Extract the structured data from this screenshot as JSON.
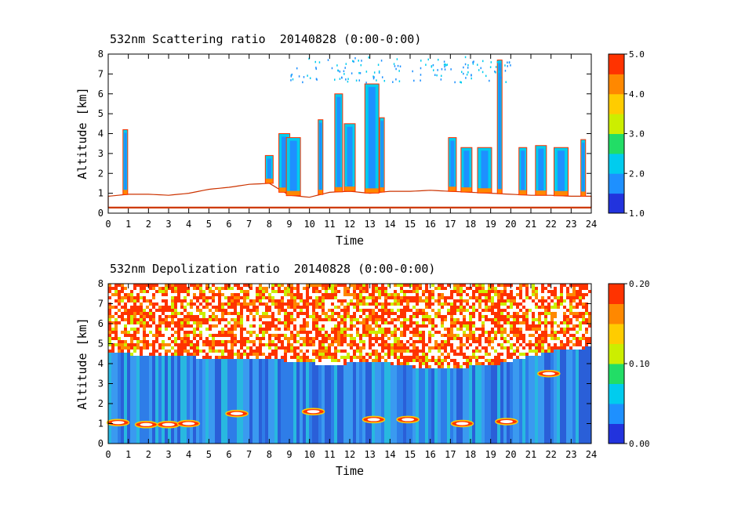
{
  "chart_data": [
    {
      "type": "heatmap",
      "title": "532nm Scattering ratio  20140828 (0:00-0:00)",
      "xlabel": "Time",
      "ylabel": "Altitude [km]",
      "xlim": [
        0,
        24
      ],
      "ylim": [
        0,
        8
      ],
      "x_ticks": [
        "0",
        "1",
        "2",
        "3",
        "4",
        "5",
        "6",
        "7",
        "8",
        "9",
        "10",
        "11",
        "12",
        "13",
        "14",
        "15",
        "16",
        "17",
        "18",
        "19",
        "20",
        "21",
        "22",
        "23",
        "24"
      ],
      "y_ticks": [
        "0",
        "1",
        "2",
        "3",
        "4",
        "5",
        "6",
        "7",
        "8"
      ],
      "colorbar": {
        "range": [
          1.0,
          5.0
        ],
        "tick_labels": [
          "1.0",
          "2.0",
          "3.0",
          "4.0",
          "5.0"
        ],
        "colors": [
          "#2233dd",
          "#1e90ff",
          "#00ccee",
          "#22dd66",
          "#ccee00",
          "#ffcc00",
          "#ff8800",
          "#ff3300"
        ]
      },
      "layers": {
        "boundary_layer_top_km": [
          [
            0,
            0.85
          ],
          [
            1,
            0.95
          ],
          [
            2,
            0.95
          ],
          [
            3,
            0.9
          ],
          [
            4,
            1.0
          ],
          [
            5,
            1.2
          ],
          [
            6,
            1.3
          ],
          [
            7,
            1.45
          ],
          [
            8,
            1.5
          ],
          [
            9,
            0.9
          ],
          [
            10,
            0.8
          ],
          [
            11,
            1.05
          ],
          [
            12,
            1.1
          ],
          [
            13,
            1.0
          ],
          [
            14,
            1.1
          ],
          [
            15,
            1.1
          ],
          [
            16,
            1.15
          ],
          [
            17,
            1.1
          ],
          [
            18,
            1.05
          ],
          [
            19,
            1.0
          ],
          [
            20,
            0.95
          ],
          [
            21,
            0.9
          ],
          [
            22,
            0.9
          ],
          [
            23,
            0.85
          ],
          [
            24,
            0.85
          ]
        ],
        "surface_line_km": 0.25,
        "cloud_tops_km": [
          [
            0.85,
            4.2
          ],
          [
            8.0,
            2.9
          ],
          [
            8.75,
            4.0
          ],
          [
            9.2,
            3.8
          ],
          [
            10.55,
            4.7
          ],
          [
            11.45,
            6.0
          ],
          [
            12.0,
            4.5
          ],
          [
            13.1,
            6.5
          ],
          [
            13.6,
            4.8
          ],
          [
            17.1,
            3.8
          ],
          [
            17.8,
            3.3
          ],
          [
            18.7,
            3.3
          ],
          [
            19.45,
            7.7
          ],
          [
            20.6,
            3.3
          ],
          [
            21.5,
            3.4
          ],
          [
            22.5,
            3.3
          ],
          [
            23.6,
            3.7
          ]
        ]
      }
    },
    {
      "type": "heatmap",
      "title": "532nm Depolization ratio  20140828 (0:00-0:00)",
      "xlabel": "Time",
      "ylabel": "Altitude [km]",
      "xlim": [
        0,
        24
      ],
      "ylim": [
        0,
        8
      ],
      "x_ticks": [
        "0",
        "1",
        "2",
        "3",
        "4",
        "5",
        "6",
        "7",
        "8",
        "9",
        "10",
        "11",
        "12",
        "13",
        "14",
        "15",
        "16",
        "17",
        "18",
        "19",
        "20",
        "21",
        "22",
        "23",
        "24"
      ],
      "y_ticks": [
        "0",
        "1",
        "2",
        "3",
        "4",
        "5",
        "6",
        "7",
        "8"
      ],
      "colorbar": {
        "range": [
          0.0,
          0.2
        ],
        "tick_labels": [
          "0.00",
          "0.10",
          "0.20"
        ],
        "colors": [
          "#2233dd",
          "#1e90ff",
          "#00ccee",
          "#22dd66",
          "#ccee00",
          "#ffcc00",
          "#ff8800",
          "#ff3300"
        ]
      },
      "layers": {
        "noisy_high_depol_above_km": [
          [
            0,
            4.6
          ],
          [
            4,
            4.4
          ],
          [
            8,
            4.3
          ],
          [
            11,
            4.0
          ],
          [
            13,
            4.2
          ],
          [
            16,
            3.8
          ],
          [
            19,
            4.0
          ],
          [
            22,
            4.7
          ],
          [
            24,
            4.9
          ]
        ],
        "depol_patches_km": [
          [
            0.1,
            1.05
          ],
          [
            1.5,
            0.95
          ],
          [
            2.6,
            0.95
          ],
          [
            3.6,
            1.0
          ],
          [
            6.0,
            1.5
          ],
          [
            9.8,
            1.6
          ],
          [
            12.8,
            1.2
          ],
          [
            14.5,
            1.2
          ],
          [
            17.2,
            1.0
          ],
          [
            19.4,
            1.1
          ],
          [
            21.5,
            3.5
          ]
        ]
      }
    }
  ]
}
